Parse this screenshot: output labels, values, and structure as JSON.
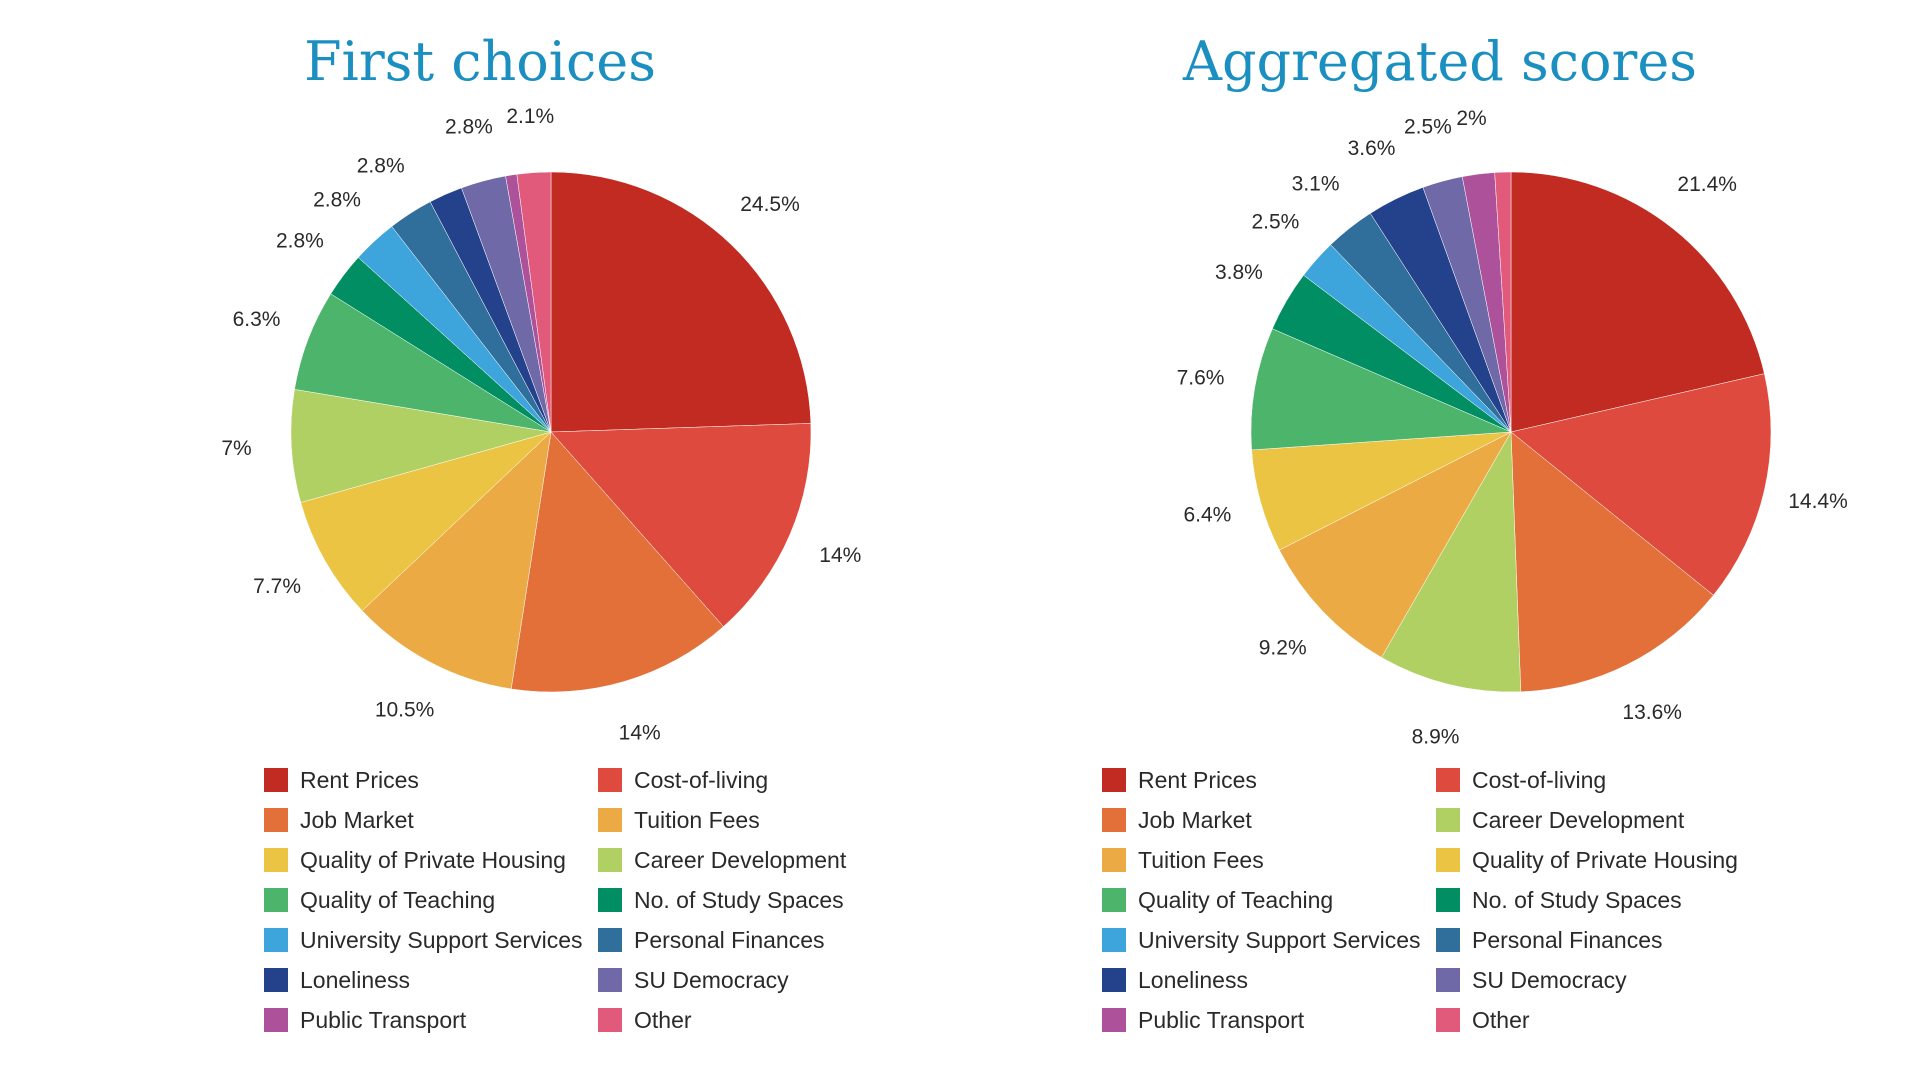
{
  "chart_data": [
    {
      "type": "pie",
      "title": "First choices",
      "start_angle_deg": 0,
      "direction": "clockwise",
      "slices": [
        {
          "label": "Rent Prices",
          "value": 24.5,
          "display": "24.5%",
          "color": "#c12b22"
        },
        {
          "label": "Cost-of-living",
          "value": 14,
          "display": "14%",
          "color": "#de4a3d"
        },
        {
          "label": "Job Market",
          "value": 14,
          "display": "14%",
          "color": "#e27038"
        },
        {
          "label": "Tuition Fees",
          "value": 10.5,
          "display": "10.5%",
          "color": "#ecaa45"
        },
        {
          "label": "Quality of Private Housing",
          "value": 7.7,
          "display": "7.7%",
          "color": "#ecc443"
        },
        {
          "label": "Career Development",
          "value": 7,
          "display": "7%",
          "color": "#b1d063"
        },
        {
          "label": "Quality of Teaching",
          "value": 6.3,
          "display": "6.3%",
          "color": "#4cb56b"
        },
        {
          "label": "No. of Study Spaces",
          "value": 2.8,
          "display": "2.8%",
          "color": "#028e63"
        },
        {
          "label": "University Support Services",
          "value": 2.8,
          "display": "2.8%",
          "color": "#3ea4dc"
        },
        {
          "label": "Personal Finances",
          "value": 2.8,
          "display": "2.8%",
          "color": "#306e9c"
        },
        {
          "label": "Loneliness",
          "value": 2.1,
          "display": "",
          "color": "#24428c"
        },
        {
          "label": "SU Democracy",
          "value": 2.8,
          "display": "2.8%",
          "color": "#6f69a8"
        },
        {
          "label": "Public Transport",
          "value": 0.7,
          "display": "",
          "color": "#ae519b"
        },
        {
          "label": "Other",
          "value": 2.1,
          "display": "2.1%",
          "color": "#e15a7c"
        }
      ],
      "legend": [
        {
          "label": "Rent Prices",
          "color": "#c12b22"
        },
        {
          "label": "Cost-of-living",
          "color": "#de4a3d"
        },
        {
          "label": "Job Market",
          "color": "#e27038"
        },
        {
          "label": "Tuition Fees",
          "color": "#ecaa45"
        },
        {
          "label": "Quality of Private Housing",
          "color": "#ecc443"
        },
        {
          "label": "Career Development",
          "color": "#b1d063"
        },
        {
          "label": "Quality of Teaching",
          "color": "#4cb56b"
        },
        {
          "label": "No. of Study Spaces",
          "color": "#028e63"
        },
        {
          "label": "University Support Services",
          "color": "#3ea4dc"
        },
        {
          "label": "Personal Finances",
          "color": "#306e9c"
        },
        {
          "label": "Loneliness",
          "color": "#24428c"
        },
        {
          "label": "SU Democracy",
          "color": "#6f69a8"
        },
        {
          "label": "Public Transport",
          "color": "#ae519b"
        },
        {
          "label": "Other",
          "color": "#e15a7c"
        }
      ]
    },
    {
      "type": "pie",
      "title": "Aggregated scores",
      "start_angle_deg": 0,
      "direction": "clockwise",
      "slices": [
        {
          "label": "Rent Prices",
          "value": 21.4,
          "display": "21.4%",
          "color": "#c12b22"
        },
        {
          "label": "Cost-of-living",
          "value": 14.4,
          "display": "14.4%",
          "color": "#de4a3d"
        },
        {
          "label": "Job Market",
          "value": 13.6,
          "display": "13.6%",
          "color": "#e27038"
        },
        {
          "label": "Career Development",
          "value": 8.9,
          "display": "8.9%",
          "color": "#b1d063"
        },
        {
          "label": "Tuition Fees",
          "value": 9.2,
          "display": "9.2%",
          "color": "#ecaa45"
        },
        {
          "label": "Quality of Private Housing",
          "value": 6.4,
          "display": "6.4%",
          "color": "#ecc443"
        },
        {
          "label": "Quality of Teaching",
          "value": 7.6,
          "display": "7.6%",
          "color": "#4cb56b"
        },
        {
          "label": "No. of Study Spaces",
          "value": 3.8,
          "display": "3.8%",
          "color": "#028e63"
        },
        {
          "label": "University Support Services",
          "value": 2.5,
          "display": "2.5%",
          "color": "#3ea4dc"
        },
        {
          "label": "Personal Finances",
          "value": 3.1,
          "display": "3.1%",
          "color": "#306e9c"
        },
        {
          "label": "Loneliness",
          "value": 3.6,
          "display": "3.6%",
          "color": "#24428c"
        },
        {
          "label": "SU Democracy",
          "value": 2.5,
          "display": "2.5%",
          "color": "#6f69a8"
        },
        {
          "label": "Public Transport",
          "value": 2,
          "display": "2%",
          "color": "#ae519b"
        },
        {
          "label": "Other",
          "value": 1.0,
          "display": "",
          "color": "#e15a7c"
        }
      ],
      "legend": [
        {
          "label": "Rent Prices",
          "color": "#c12b22"
        },
        {
          "label": "Cost-of-living",
          "color": "#de4a3d"
        },
        {
          "label": "Job Market",
          "color": "#e27038"
        },
        {
          "label": "Career Development",
          "color": "#b1d063"
        },
        {
          "label": "Tuition Fees",
          "color": "#ecaa45"
        },
        {
          "label": "Quality of Private Housing",
          "color": "#ecc443"
        },
        {
          "label": "Quality of Teaching",
          "color": "#4cb56b"
        },
        {
          "label": "No. of Study Spaces",
          "color": "#028e63"
        },
        {
          "label": "University Support Services",
          "color": "#3ea4dc"
        },
        {
          "label": "Personal Finances",
          "color": "#306e9c"
        },
        {
          "label": "Loneliness",
          "color": "#24428c"
        },
        {
          "label": "SU Democracy",
          "color": "#6f69a8"
        },
        {
          "label": "Public Transport",
          "color": "#ae519b"
        },
        {
          "label": "Other",
          "color": "#e15a7c"
        }
      ]
    }
  ]
}
